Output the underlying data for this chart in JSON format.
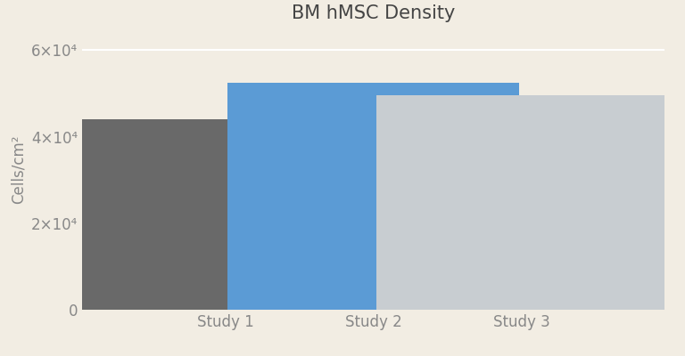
{
  "categories": [
    "Study 1",
    "Study 2",
    "Study 3"
  ],
  "values": [
    44000,
    52500,
    49500
  ],
  "bar_colors": [
    "#696969",
    "#5b9bd5",
    "#c8cdd1"
  ],
  "title": "BM hMSC Density",
  "ylabel": "Cells/cm²",
  "ylim": [
    0,
    65000
  ],
  "yticks": [
    0,
    20000,
    40000,
    60000
  ],
  "ytick_labels": [
    "0",
    "2×10⁴",
    "4×10⁴",
    "6×10⁴"
  ],
  "background_color": "#f2ede3",
  "title_fontsize": 15,
  "label_fontsize": 12,
  "tick_fontsize": 12,
  "bar_width": 0.55,
  "bar_positions": [
    0.25,
    0.5,
    0.75
  ]
}
